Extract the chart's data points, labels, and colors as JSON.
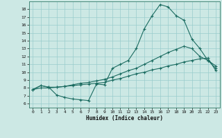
{
  "bg_color": "#cce8e4",
  "line_color": "#1a6b60",
  "grid_color": "#99cccc",
  "xlabel": "Humidex (Indice chaleur)",
  "xlim": [
    -0.5,
    23.5
  ],
  "ylim": [
    5.5,
    19.0
  ],
  "yticks": [
    6,
    7,
    8,
    9,
    10,
    11,
    12,
    13,
    14,
    15,
    16,
    17,
    18
  ],
  "xticks": [
    0,
    1,
    2,
    3,
    4,
    5,
    6,
    7,
    8,
    9,
    10,
    11,
    12,
    13,
    14,
    15,
    16,
    17,
    18,
    19,
    20,
    21,
    22,
    23
  ],
  "curve1_x": [
    0,
    1,
    2,
    3,
    4,
    5,
    6,
    7,
    8,
    9,
    10,
    11,
    12,
    13,
    14,
    15,
    16,
    17,
    18,
    19,
    20,
    21,
    22,
    23
  ],
  "curve1_y": [
    7.8,
    8.3,
    8.1,
    7.1,
    6.8,
    6.6,
    6.5,
    6.4,
    8.5,
    8.4,
    10.5,
    11.0,
    11.5,
    13.0,
    15.5,
    17.2,
    18.6,
    18.3,
    17.2,
    16.6,
    14.2,
    13.0,
    11.5,
    10.8
  ],
  "curve2_x": [
    0,
    1,
    2,
    3,
    4,
    5,
    6,
    7,
    8,
    9,
    10,
    11,
    12,
    13,
    14,
    15,
    16,
    17,
    18,
    19,
    20,
    21,
    22,
    23
  ],
  "curve2_y": [
    7.8,
    8.3,
    8.1,
    8.1,
    8.2,
    8.4,
    8.6,
    8.7,
    8.9,
    9.1,
    9.4,
    9.8,
    10.2,
    10.5,
    11.0,
    11.5,
    12.0,
    12.5,
    12.9,
    13.3,
    13.0,
    12.0,
    11.5,
    10.5
  ],
  "curve3_x": [
    0,
    1,
    2,
    3,
    4,
    5,
    6,
    7,
    8,
    9,
    10,
    11,
    12,
    13,
    14,
    15,
    16,
    17,
    18,
    19,
    20,
    21,
    22,
    23
  ],
  "curve3_y": [
    7.8,
    8.0,
    8.0,
    8.1,
    8.2,
    8.3,
    8.4,
    8.5,
    8.6,
    8.7,
    9.0,
    9.2,
    9.5,
    9.8,
    10.0,
    10.3,
    10.5,
    10.8,
    11.0,
    11.3,
    11.5,
    11.7,
    11.8,
    10.2
  ]
}
